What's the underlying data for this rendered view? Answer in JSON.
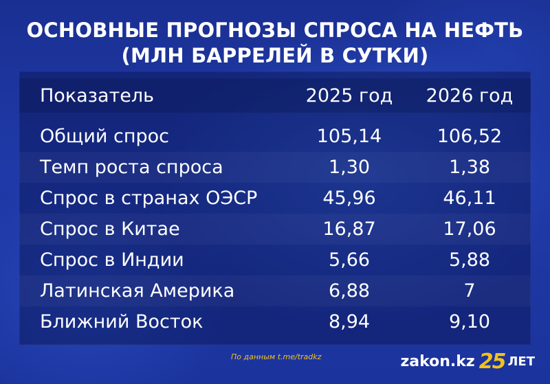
{
  "title": {
    "line1": "ОСНОВНЫЕ ПРОГНОЗЫ СПРОСА НА НЕФТЬ",
    "line2": "(МЛН БАРРЕЛЕЙ В СУТКИ)"
  },
  "table": {
    "headers": [
      "Показатель",
      "2025 год",
      "2026 год"
    ],
    "rows": [
      {
        "label": "Общий спрос",
        "y2025": "105,14",
        "y2026": "106,52"
      },
      {
        "label": "Темп роста спроса",
        "y2025": "1,30",
        "y2026": "1,38"
      },
      {
        "label": "Спрос в странах ОЭСР",
        "y2025": "45,96",
        "y2026": "46,11"
      },
      {
        "label": "Спрос в Китае",
        "y2025": "16,87",
        "y2026": "17,06"
      },
      {
        "label": "Спрос в Индии",
        "y2025": "5,66",
        "y2026": "5,88"
      },
      {
        "label": "Латинская Америка",
        "y2025": "6,88",
        "y2026": "7"
      },
      {
        "label": "Ближний Восток",
        "y2025": "8,94",
        "y2026": "9,10"
      }
    ]
  },
  "footer": {
    "source": "По данным  t.me/tradkz",
    "brand_site": "zakon.kz",
    "brand_number": "25",
    "brand_word": "ЛЕТ"
  },
  "colors": {
    "background": "#1f3aa8",
    "accent": "#f2c21b",
    "text": "#ffffff"
  }
}
